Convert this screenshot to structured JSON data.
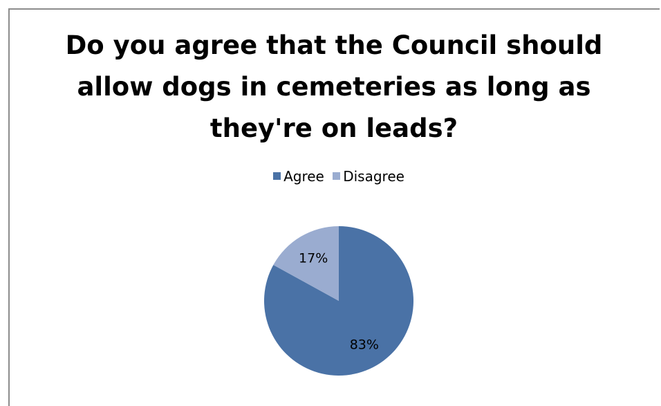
{
  "chart_data": {
    "type": "pie",
    "title_lines": [
      "Do you agree that the Council should",
      "allow dogs in cemeteries as long as",
      "they're on leads?"
    ],
    "categories": [
      "Agree",
      "Disagree"
    ],
    "values": [
      83,
      17
    ],
    "data_labels": [
      "83%",
      "17%"
    ],
    "colors": [
      "#4A72A6",
      "#9AACD0"
    ],
    "legend_position": "top"
  }
}
